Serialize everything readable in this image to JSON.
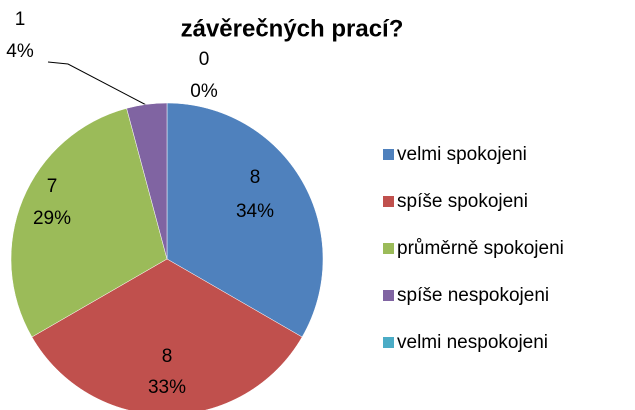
{
  "chart_data": {
    "type": "pie",
    "title": "závěrečných prací?",
    "categories": [
      "velmi spokojeni",
      "spíše spokojeni",
      "průměrně spokojeni",
      "spíše nespokojeni",
      "velmi nespokojeni"
    ],
    "values": [
      8,
      8,
      7,
      1,
      0
    ],
    "percent_labels": [
      "34%",
      "33%",
      "29%",
      "4%",
      "0%"
    ],
    "colors": [
      "#4f81bd",
      "#c0504d",
      "#9bbb59",
      "#8064a2",
      "#4bacc6"
    ],
    "legend": "right"
  }
}
